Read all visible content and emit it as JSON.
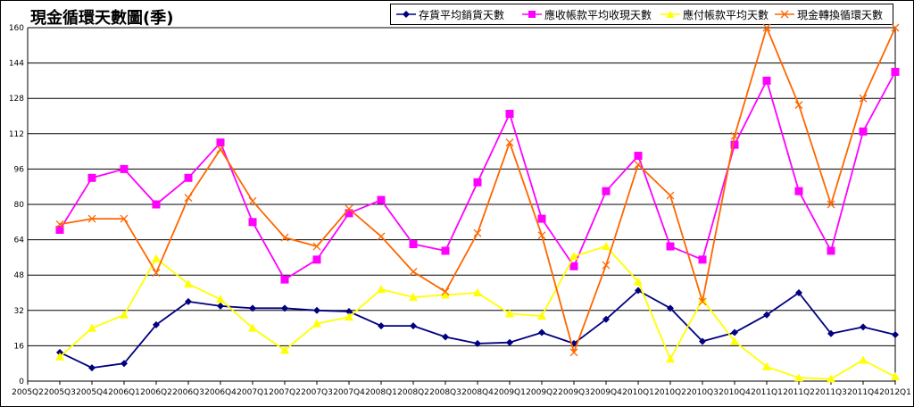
{
  "chart_data": {
    "type": "line",
    "title": "現金循環天數圖(季)",
    "categories": [
      "2005Q2",
      "2005Q3",
      "2005Q4",
      "2006Q1",
      "2006Q2",
      "2006Q3",
      "2006Q4",
      "2007Q1",
      "2007Q2",
      "2007Q3",
      "2007Q4",
      "2008Q1",
      "2008Q2",
      "2008Q3",
      "2008Q4",
      "2009Q1",
      "2009Q2",
      "2009Q3",
      "2009Q4",
      "2010Q1",
      "2010Q2",
      "2010Q3",
      "2010Q4",
      "2011Q1",
      "2011Q2",
      "2011Q3",
      "2011Q4",
      "2012Q1"
    ],
    "series": [
      {
        "name": "存貨平均銷貨天數",
        "color": "#000080",
        "marker": "diamond",
        "values": [
          null,
          13,
          6,
          8,
          25.5,
          36,
          34,
          33,
          33,
          32,
          31.5,
          25,
          25,
          20,
          17,
          17.5,
          22,
          17,
          28,
          41,
          33,
          18,
          22,
          30,
          40,
          21.5,
          24.5,
          21
        ]
      },
      {
        "name": "應收帳款平均收現天數",
        "color": "#ff00ff",
        "marker": "square",
        "values": [
          null,
          68.5,
          92,
          96,
          80,
          92,
          108,
          72,
          46,
          55,
          76,
          82,
          62,
          59,
          90,
          121,
          73.5,
          52,
          86,
          102,
          61,
          55,
          107,
          136,
          86,
          59,
          113,
          140
        ]
      },
      {
        "name": "應付帳款平均天數",
        "color": "#ffff00",
        "marker": "triangle",
        "values": [
          null,
          11,
          24,
          30,
          55.5,
          44,
          37,
          24,
          14,
          26,
          29,
          41.5,
          38,
          39,
          40,
          30.5,
          29.5,
          56.5,
          61,
          45,
          10,
          37,
          18,
          6.5,
          1.5,
          1,
          9.5,
          2
        ]
      },
      {
        "name": "現金轉換循環天數",
        "color": "#ff6600",
        "marker": "x",
        "values": [
          null,
          71,
          73.5,
          73.5,
          49,
          83,
          105,
          81.5,
          65,
          61,
          78,
          65.5,
          49.5,
          40.5,
          67,
          108,
          66,
          13,
          52.5,
          98,
          84,
          36,
          111,
          160,
          125,
          80,
          128,
          160
        ]
      }
    ],
    "ylim": [
      0,
      160
    ],
    "yticks": [
      0,
      16,
      32,
      48,
      64,
      80,
      96,
      112,
      128,
      144,
      160
    ],
    "grid": true,
    "legend_position": "top-right"
  }
}
